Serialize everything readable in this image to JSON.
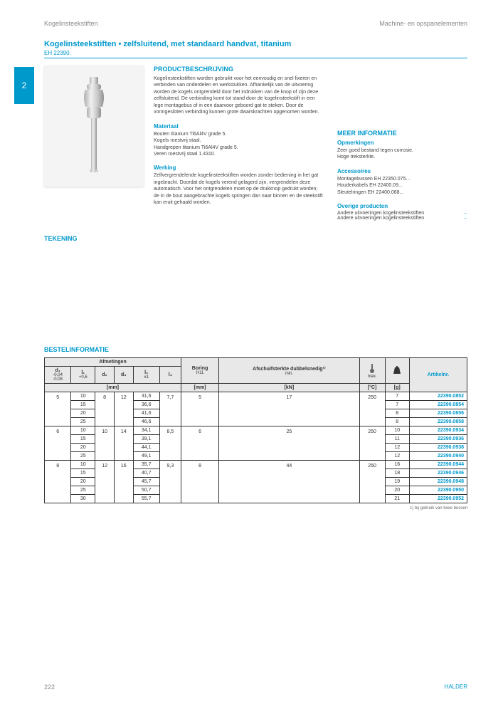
{
  "header": {
    "left": "Kogelinsteekstiften",
    "right": "Machine- en opspanelementen"
  },
  "sidebar": {
    "tab": "2"
  },
  "title": "Kogelinsteekstiften • zelfsluitend, met standaard handvat, titanium",
  "subtitle": "EH 22390.",
  "sections": {
    "product_desc_head": "PRODUCTBESCHRIJVING",
    "product_desc": "Kogelinsteekstiften worden gebruikt voor het eenvoudig en snel fixeren en verbinden van onderdelen en werkstukken. Afhankelijk van de uitvoering worden de kogels ontgrendeld door het indrukken van de knop of zijn deze zelfsluitend. De verbinding komt tot stand door de kogelinsteekstift in een lege montagebus of in een daarvoor geboord gat te steken. Door de vormgesloten verbinding kunnen grote dwarskrachten opgenomen worden.",
    "material_head": "Materiaal",
    "material_text": "Bouten titanium Ti6Al4V grade 5.\nKogels roestvrij staal.\nHandgrepen titanium Ti6Al4V grade 5.\nVeren roestvrij staal 1.4310.",
    "working_head": "Werking",
    "working_text": "Zelfvergrendelende kogelinsteekstiften worden zonder bediening in het gat ingebracht. Doordat de kogels verend gelagerd zijn, vergrendelen deze automatisch. Voor het ontgrendelen moet op de drukknop gedrukt worden; de in de bout aangebrachte kogels springen dan naar binnen en de steekstift kan eruit gehaald worden.",
    "more_info_head": "MEER INFORMATIE",
    "remarks_head": "Opmerkingen",
    "remarks_text": "Zeer goed bestand tegen corrosie.\nHoge treksterkte.",
    "accessories_head": "Accessoires",
    "accessories_text": "Montagebussen EH 22350.075...\nHouderkabels EH 22400.09...\nSleutelringen EH 22400.068...",
    "other_head": "Overige producten",
    "other_links": [
      "Andere uitvoeringen kogelinsteekstiften",
      "Andere uitvoeringen kogelinsteekstiften"
    ],
    "drawing_head": "TEKENING",
    "order_head": "BESTELINFORMATIE"
  },
  "table": {
    "group_afm": "Afmetingen",
    "col_d1": "d₁",
    "col_d1_tol": "-0,04\n-0,08",
    "col_l1": "l₁",
    "col_l1_tol": "+0,6",
    "col_d2": "d₂",
    "col_d3": "d₃",
    "col_l2": "l₂",
    "col_l2_tol": "±1",
    "col_l3": "l₃",
    "col_boring": "Boring",
    "col_boring_sub": "H11",
    "col_shear": "Afschuifsterkte dubbelsnedig¹⁾",
    "col_shear_sub": "min.",
    "col_temp_sub": "max.",
    "unit_mm": "[mm]",
    "unit_kn": "[kN]",
    "unit_c": "[°C]",
    "unit_g": "[g]",
    "col_art": "Artikelnr.",
    "rows": [
      {
        "d1": "5",
        "l1": "10",
        "d2": "8",
        "d3": "12",
        "l2": "31,6",
        "l3": "7,7",
        "b": "5",
        "kn": "17",
        "c": "250",
        "g": "7",
        "art": "22390.0852"
      },
      {
        "d1": "",
        "l1": "15",
        "d2": "",
        "d3": "",
        "l2": "36,6",
        "l3": "",
        "b": "",
        "kn": "",
        "c": "",
        "g": "7",
        "art": "22390.0854"
      },
      {
        "d1": "",
        "l1": "20",
        "d2": "",
        "d3": "",
        "l2": "41,6",
        "l3": "",
        "b": "",
        "kn": "",
        "c": "",
        "g": "8",
        "art": "22390.0856"
      },
      {
        "d1": "",
        "l1": "25",
        "d2": "",
        "d3": "",
        "l2": "46,6",
        "l3": "",
        "b": "",
        "kn": "",
        "c": "",
        "g": "8",
        "art": "22390.0858"
      },
      {
        "d1": "6",
        "l1": "10",
        "d2": "10",
        "d3": "14",
        "l2": "34,1",
        "l3": "8,5",
        "b": "6",
        "kn": "25",
        "c": "250",
        "g": "10",
        "art": "22390.0934"
      },
      {
        "d1": "",
        "l1": "15",
        "d2": "",
        "d3": "",
        "l2": "39,1",
        "l3": "",
        "b": "",
        "kn": "",
        "c": "",
        "g": "11",
        "art": "22390.0936"
      },
      {
        "d1": "",
        "l1": "20",
        "d2": "",
        "d3": "",
        "l2": "44,1",
        "l3": "",
        "b": "",
        "kn": "",
        "c": "",
        "g": "12",
        "art": "22390.0938"
      },
      {
        "d1": "",
        "l1": "25",
        "d2": "",
        "d3": "",
        "l2": "49,1",
        "l3": "",
        "b": "",
        "kn": "",
        "c": "",
        "g": "12",
        "art": "22390.0940"
      },
      {
        "d1": "8",
        "l1": "10",
        "d2": "12",
        "d3": "16",
        "l2": "35,7",
        "l3": "9,3",
        "b": "8",
        "kn": "44",
        "c": "250",
        "g": "16",
        "art": "22390.0944"
      },
      {
        "d1": "",
        "l1": "15",
        "d2": "",
        "d3": "",
        "l2": "40,7",
        "l3": "",
        "b": "",
        "kn": "",
        "c": "",
        "g": "18",
        "art": "22390.0946"
      },
      {
        "d1": "",
        "l1": "20",
        "d2": "",
        "d3": "",
        "l2": "45,7",
        "l3": "",
        "b": "",
        "kn": "",
        "c": "",
        "g": "19",
        "art": "22390.0948"
      },
      {
        "d1": "",
        "l1": "25",
        "d2": "",
        "d3": "",
        "l2": "50,7",
        "l3": "",
        "b": "",
        "kn": "",
        "c": "",
        "g": "20",
        "art": "22390.0950"
      },
      {
        "d1": "",
        "l1": "30",
        "d2": "",
        "d3": "",
        "l2": "55,7",
        "l3": "",
        "b": "",
        "kn": "",
        "c": "",
        "g": "21",
        "art": "22390.0952"
      }
    ],
    "footnote": "1) bij gebruik van twee bussen"
  },
  "footer": {
    "page": "222",
    "brand": "HALDER"
  },
  "colors": {
    "accent": "#0099cc"
  }
}
